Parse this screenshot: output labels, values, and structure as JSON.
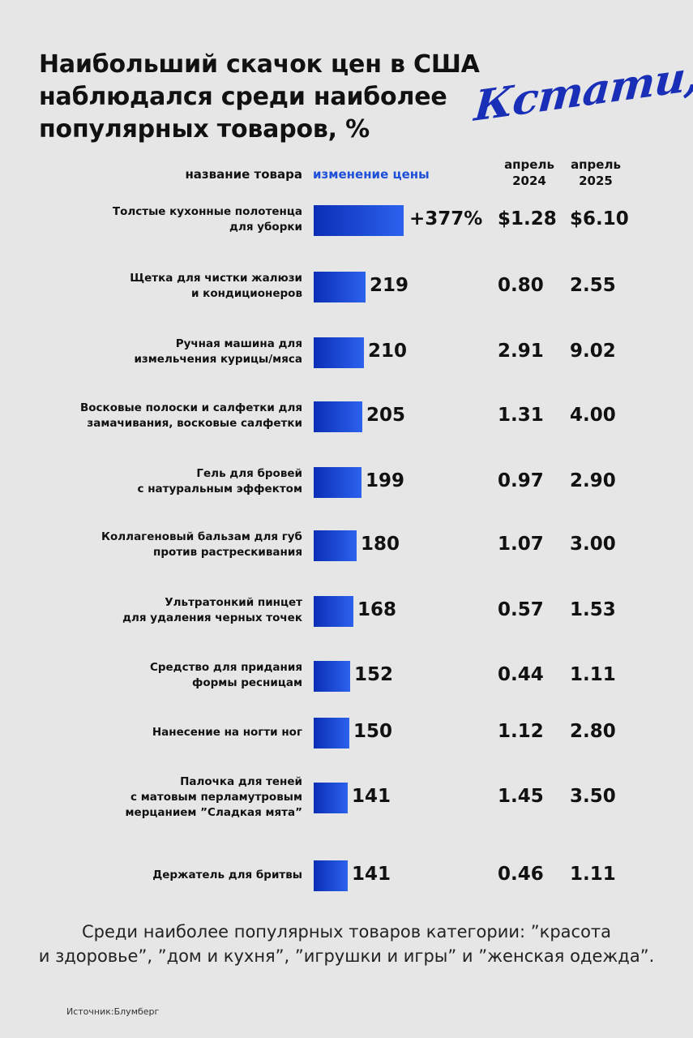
{
  "title": [
    "Наибольший скачок цен в США",
    "наблюдался среди наиболее",
    "популярных товаров, %"
  ],
  "logo": "Кстати,",
  "headers": {
    "product": "название товара",
    "change": "изменение цены",
    "apr2024": [
      "апрель",
      "2024"
    ],
    "apr2025": [
      "апрель",
      "2025"
    ]
  },
  "chart_data": {
    "type": "bar",
    "orientation": "horizontal",
    "title": "Наибольший скачок цен в США наблюдался среди наиболее популярных товаров, %",
    "categories": [
      "Толстые кухонные полотенца для уборки",
      "Щетка для чистки жалюзи и кондиционеров",
      "Ручная машина для измельчения курицы/мяса",
      "Восковые полоски и салфетки для замачивания, восковые салфетки",
      "Гель для бровей с натуральным эффектом",
      "Коллагеновый бальзам для губ против растрескивания",
      "Ультратонкий пинцет для удаления черных точек",
      "Средство для придания формы ресницам",
      "Нанесение на ногти ног",
      "Палочка для теней с матовым перламутровым мерцанием ”Сладкая мята”",
      "Держатель для бритвы"
    ],
    "series": [
      {
        "name": "изменение цены",
        "values": [
          377,
          219,
          210,
          205,
          199,
          180,
          168,
          152,
          150,
          141,
          141
        ]
      }
    ],
    "colors": {
      "bar_start": "#0b2eb6",
      "bar_end": "#2c62ee"
    }
  },
  "rows": [
    {
      "name": [
        "Толстые кухонные полотенца",
        "для уборки"
      ],
      "label": "+377%",
      "p2024": "$1.28",
      "p2025": "$6.10"
    },
    {
      "name": [
        "Щетка для чистки жалюзи",
        "и кондиционеров"
      ],
      "label": "219",
      "p2024": "0.80",
      "p2025": "2.55"
    },
    {
      "name": [
        "Ручная машина для",
        "измельчения курицы/мяса"
      ],
      "label": "210",
      "p2024": "2.91",
      "p2025": "9.02"
    },
    {
      "name": [
        "Восковые полоски и салфетки для",
        "замачивания, восковые салфетки"
      ],
      "label": "205",
      "p2024": "1.31",
      "p2025": "4.00"
    },
    {
      "name": [
        "Гель для бровей",
        "с натуральным эффектом"
      ],
      "label": "199",
      "p2024": "0.97",
      "p2025": "2.90"
    },
    {
      "name": [
        "Коллагеновый бальзам для губ",
        "против растрескивания"
      ],
      "label": "180",
      "p2024": "1.07",
      "p2025": "3.00"
    },
    {
      "name": [
        "Ультратонкий пинцет",
        "для удаления черных точек"
      ],
      "label": "168",
      "p2024": "0.57",
      "p2025": "1.53"
    },
    {
      "name": [
        "Средство для придания",
        "формы ресницам"
      ],
      "label": "152",
      "p2024": "0.44",
      "p2025": "1.11"
    },
    {
      "name": [
        "Нанесение на ногти ног"
      ],
      "label": "150",
      "p2024": "1.12",
      "p2025": "2.80"
    },
    {
      "name": [
        "Палочка для теней",
        "с матовым перламутровым",
        "мерцанием ”Сладкая мята”"
      ],
      "label": "141",
      "p2024": "1.45",
      "p2025": "3.50"
    },
    {
      "name": [
        "Держатель для бритвы"
      ],
      "label": "141",
      "p2024": "0.46",
      "p2025": "1.11"
    }
  ],
  "footnote": [
    "Среди наиболее популярных товаров категории: ”красота",
    "и здоровье”, ”дом и кухня”, ”игрушки и игры” и ”женская одежда”."
  ],
  "source": "Источник:Блумберг"
}
